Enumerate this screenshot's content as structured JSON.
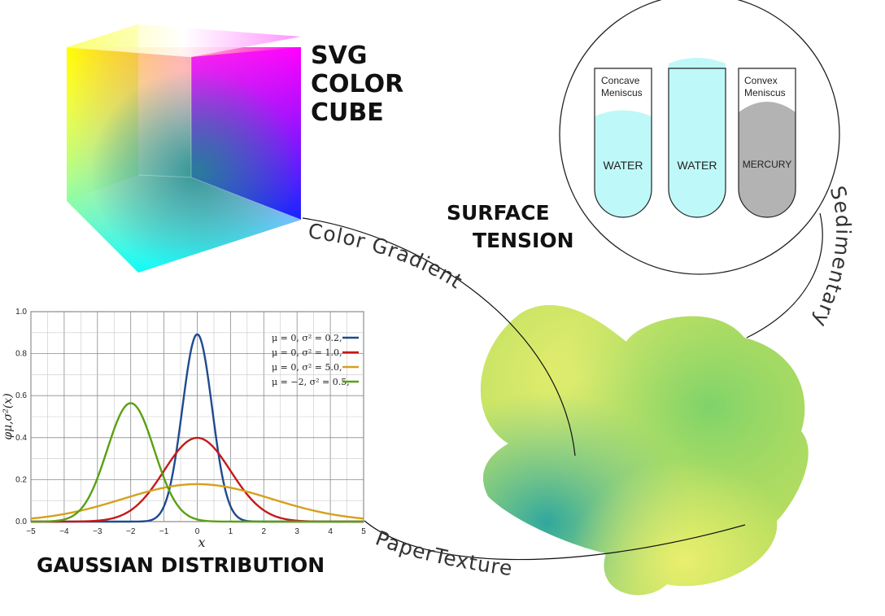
{
  "titles": {
    "cube_line1": "SVG",
    "cube_line2": "COLOR",
    "cube_line3": "CUBE",
    "surface_line1": "SURFACE",
    "surface_line2": "TENSION",
    "gaussian": "GAUSSIAN DISTRIBUTION"
  },
  "connectors": {
    "color_gradient": "Color Gradient",
    "sedimentary": "Sedimentary",
    "paper_texture": "PaperTexture"
  },
  "tubes": [
    {
      "caption_line1": "Concave",
      "caption_line2": "Meniscus",
      "liquid": "WATER",
      "color": "#bff8f8"
    },
    {
      "caption_line1": "",
      "caption_line2": "",
      "liquid": "WATER",
      "color": "#bff8f8"
    },
    {
      "caption_line1": "Convex",
      "caption_line2": "Meniscus",
      "liquid": "MERCURY",
      "color": "#b3b3b3"
    }
  ],
  "chart_data": {
    "type": "line",
    "title": "",
    "xlabel": "x",
    "ylabel": "φμ,σ²(x)",
    "xlim": [
      -5,
      5
    ],
    "ylim": [
      0,
      1.0
    ],
    "x_ticks": [
      "−5",
      "−4",
      "−3",
      "−2",
      "−1",
      "0",
      "1",
      "2",
      "3",
      "4",
      "5"
    ],
    "y_ticks": [
      "0.0",
      "0.2",
      "0.4",
      "0.6",
      "0.8",
      "1.0"
    ],
    "grid": true,
    "legend_position": "top-right",
    "series": [
      {
        "name": "μ = 0,   σ² = 0.2,",
        "mu": 0,
        "sigma2": 0.2,
        "color": "#1f4a8f"
      },
      {
        "name": "μ = 0,   σ² = 1.0,",
        "mu": 0,
        "sigma2": 1.0,
        "color": "#c41a1a"
      },
      {
        "name": "μ = 0,   σ² = 5.0,",
        "mu": 0,
        "sigma2": 5.0,
        "color": "#d6a01e"
      },
      {
        "name": "μ = −2,  σ² = 0.5,",
        "mu": -2,
        "sigma2": 0.5,
        "color": "#5aa012"
      }
    ]
  }
}
